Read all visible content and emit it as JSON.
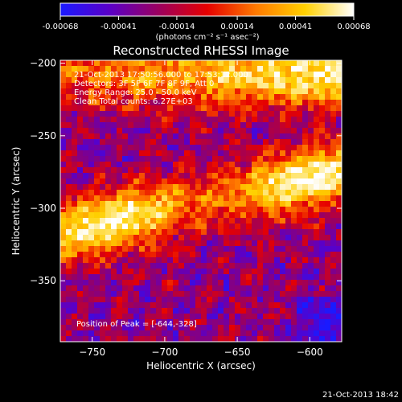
{
  "colorbar": {
    "ticks": [
      "-0.00068",
      "-0.00041",
      "-0.00014",
      "0.00014",
      "0.00041",
      "0.00068"
    ],
    "tick_values": [
      -0.00068,
      -0.00041,
      -0.00014,
      0.00014,
      0.00041,
      0.00068
    ],
    "range": [
      -0.00068,
      0.00068
    ],
    "units_label": "(photons cm⁻² s⁻¹ asec⁻²)",
    "gradient_colors": [
      "#1a1aff",
      "#5a00c8",
      "#9a0060",
      "#e60000",
      "#ff7a00",
      "#ffd000",
      "#ffffff"
    ]
  },
  "chart_data": {
    "type": "heatmap",
    "title": "Reconstructed RHESSI Image",
    "xlabel": "Heliocentric X (arcsec)",
    "ylabel": "Heliocentric Y (arcsec)",
    "xlim": [
      -772,
      -578
    ],
    "ylim": [
      -392,
      -198
    ],
    "x_ticks": [
      -750,
      -700,
      -650,
      -600
    ],
    "y_ticks": [
      -200,
      -250,
      -300,
      -350
    ],
    "x_tick_labels": [
      "−750",
      "−700",
      "−650",
      "−600"
    ],
    "y_tick_labels": [
      "−200",
      "−250",
      "−300",
      "−350"
    ],
    "annotations": [
      "21-Oct-2013 17:50:56.000 to 17:53:12.000",
      "Detectors: 3F 5F 6F 7F 8F 9F, Att 0",
      "Energy Range: 25.0 - 50.0 keV",
      "Clean     Total counts: 6.27E+03"
    ],
    "peak_label": "Position of Peak = [-644,-328]",
    "peak": {
      "x": -644,
      "y": -328
    },
    "grid": false
  },
  "footer": {
    "timestamp": "21-Oct-2013 18:42"
  }
}
